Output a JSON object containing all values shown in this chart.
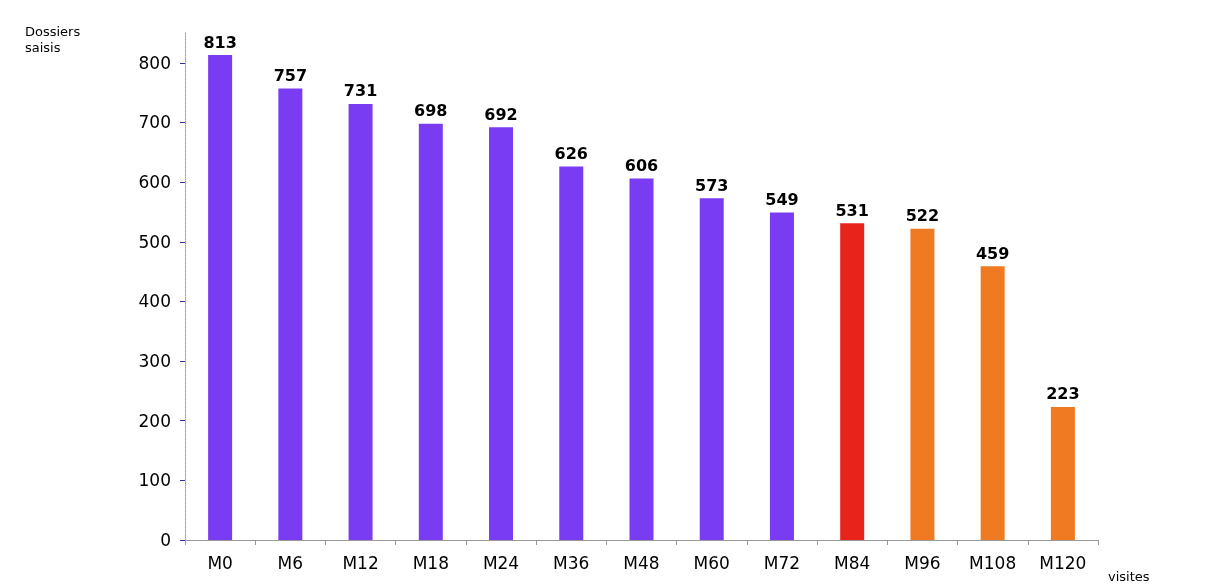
{
  "chart_data": {
    "type": "bar",
    "ylabel": "Dossiers saisis",
    "xlabel": "visites",
    "categories": [
      "M0",
      "M6",
      "M12",
      "M18",
      "M24",
      "M36",
      "M48",
      "M60",
      "M72",
      "M84",
      "M96",
      "M108",
      "M120"
    ],
    "values": [
      813,
      757,
      731,
      698,
      692,
      626,
      606,
      573,
      549,
      531,
      522,
      459,
      223
    ],
    "colors": [
      "#7a3cf2",
      "#7a3cf2",
      "#7a3cf2",
      "#7a3cf2",
      "#7a3cf2",
      "#7a3cf2",
      "#7a3cf2",
      "#7a3cf2",
      "#7a3cf2",
      "#e8231c",
      "#f07a22",
      "#f07a22",
      "#f07a22"
    ],
    "ylim": [
      0,
      850
    ],
    "yticks": [
      0,
      100,
      200,
      300,
      400,
      500,
      600,
      700,
      800
    ],
    "data_labels": true,
    "grid": false
  }
}
